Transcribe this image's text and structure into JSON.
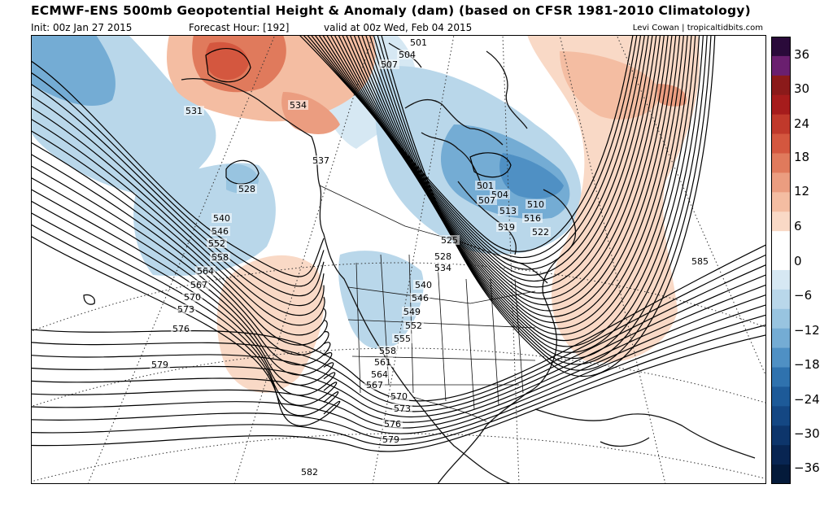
{
  "header": {
    "title": "ECMWF-ENS 500mb Geopotential Height & Anomaly (dam) (based on CFSR 1981-2010 Climatology)",
    "init": "Init: 00z Jan 27 2015",
    "forecast_hour": "Forecast Hour: [192]",
    "valid": "valid at 00z Wed, Feb 04 2015",
    "credit": "Levi Cowan | tropicaltidbits.com"
  },
  "colorbar": {
    "labels": [
      "36",
      "30",
      "24",
      "18",
      "12",
      "6",
      "0",
      "-6",
      "-12",
      "-18",
      "-24",
      "-30",
      "-36"
    ],
    "colors": [
      "#2a0a3a",
      "#6a1f6f",
      "#8b1a1a",
      "#a61c1c",
      "#c0392b",
      "#d4573f",
      "#e07a5c",
      "#eb9d80",
      "#f4bda2",
      "#f9d9c6",
      "#ffffff",
      "#ffffff",
      "#d6e8f3",
      "#b9d7ea",
      "#98c4e0",
      "#74acd4",
      "#4f90c4",
      "#2f72ae",
      "#1d5a98",
      "#144783",
      "#0d356b",
      "#082552",
      "#041a3a"
    ]
  },
  "map": {
    "contour_labels": [
      "501",
      "504",
      "507",
      "531",
      "534",
      "537",
      "528",
      "540",
      "546",
      "552",
      "558",
      "564",
      "567",
      "570",
      "573",
      "576",
      "579",
      "582",
      "585",
      "501",
      "504",
      "507",
      "510",
      "513",
      "516",
      "519",
      "522",
      "525",
      "528",
      "534",
      "540",
      "546",
      "549",
      "552",
      "555",
      "558",
      "561",
      "564",
      "567",
      "570",
      "573",
      "576",
      "579"
    ]
  }
}
